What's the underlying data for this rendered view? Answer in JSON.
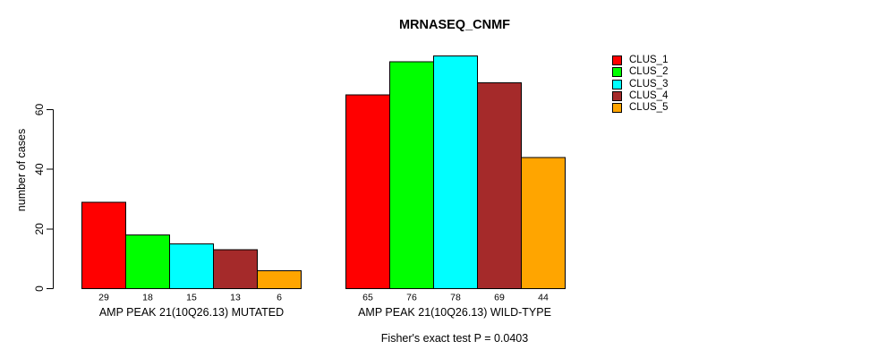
{
  "title": "MRNASEQ_CNMF",
  "y_axis": {
    "label": "number of cases",
    "ticks": [
      0,
      20,
      40,
      60
    ]
  },
  "footer": "Fisher's exact test P = 0.0403",
  "chart_data": {
    "type": "bar",
    "title": "MRNASEQ_CNMF",
    "xlabel": "",
    "ylabel": "number of cases",
    "ylim": [
      0,
      80
    ],
    "yticks": [
      0,
      20,
      40,
      60
    ],
    "grid": false,
    "legend_position": "right",
    "categories": [
      "AMP PEAK 21(10Q26.13) MUTATED",
      "AMP PEAK 21(10Q26.13) WILD-TYPE"
    ],
    "series": [
      {
        "name": "CLUS_1",
        "color": "#ff0000",
        "values": [
          29,
          65
        ]
      },
      {
        "name": "CLUS_2",
        "color": "#00ff00",
        "values": [
          18,
          76
        ]
      },
      {
        "name": "CLUS_3",
        "color": "#00ffff",
        "values": [
          15,
          78
        ]
      },
      {
        "name": "CLUS_4",
        "color": "#a52a2a",
        "values": [
          13,
          69
        ]
      },
      {
        "name": "CLUS_5",
        "color": "#ffa500",
        "values": [
          6,
          44
        ]
      }
    ],
    "bar_value_labels": [
      [
        29,
        18,
        15,
        13,
        6
      ],
      [
        65,
        76,
        78,
        69,
        44
      ]
    ],
    "annotation": "Fisher's exact test P = 0.0403"
  }
}
